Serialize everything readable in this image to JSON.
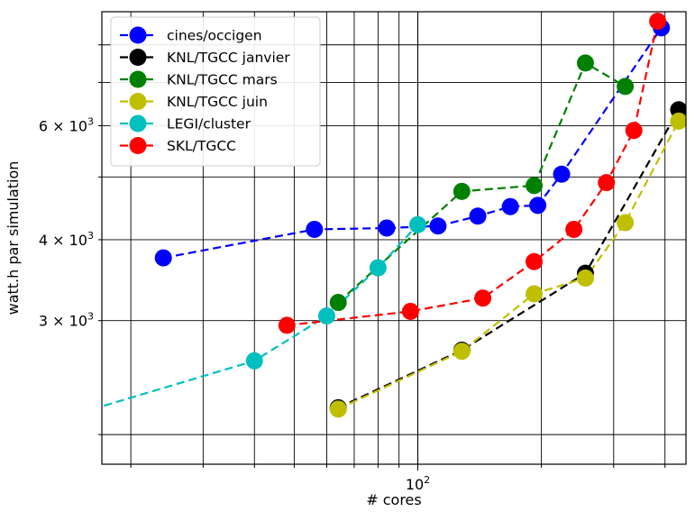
{
  "chart_data": {
    "type": "line",
    "xlabel": "# cores",
    "ylabel": "watt.h par simulation",
    "xscale": "log",
    "yscale": "log",
    "xlim": [
      17,
      450
    ],
    "ylim": [
      1800,
      9000
    ],
    "grid": true,
    "legend_position": "top-left",
    "x_tick_labels": [
      {
        "value": 100,
        "label": "10²"
      }
    ],
    "y_tick_labels": [
      {
        "value": 3000,
        "label": "3 × 10³"
      },
      {
        "value": 4000,
        "label": "4 × 10³"
      },
      {
        "value": 6000,
        "label": "6 × 10³"
      }
    ],
    "series": [
      {
        "name": "cines/occigen",
        "color": "#0000ff",
        "x": [
          24,
          56,
          84,
          112,
          140,
          168,
          196,
          224,
          392
        ],
        "y": [
          3750,
          4150,
          4170,
          4200,
          4350,
          4500,
          4520,
          5050,
          8500
        ]
      },
      {
        "name": "KNL/TGCC janvier",
        "color": "#000000",
        "x": [
          64,
          128,
          256,
          432
        ],
        "y": [
          2200,
          2700,
          3550,
          6350
        ]
      },
      {
        "name": "KNL/TGCC mars",
        "color": "#008000",
        "x": [
          64,
          128,
          192,
          256,
          320
        ],
        "y": [
          3200,
          4750,
          4850,
          7500,
          6900
        ]
      },
      {
        "name": "KNL/TGCC juin",
        "color": "#bfbf00",
        "x": [
          64,
          128,
          192,
          256,
          320,
          432
        ],
        "y": [
          2190,
          2690,
          3300,
          3490,
          4250,
          6100
        ]
      },
      {
        "name": "LEGI/cluster",
        "color": "#00bfbf",
        "x": [
          10,
          40,
          60,
          80,
          100
        ],
        "y": [
          2000,
          2600,
          3050,
          3620,
          4220
        ]
      },
      {
        "name": "SKL/TGCC",
        "color": "#ff0000",
        "x": [
          48,
          96,
          144,
          192,
          240,
          288,
          336,
          384
        ],
        "y": [
          2950,
          3100,
          3250,
          3700,
          4150,
          4900,
          5900,
          8700
        ]
      }
    ]
  }
}
